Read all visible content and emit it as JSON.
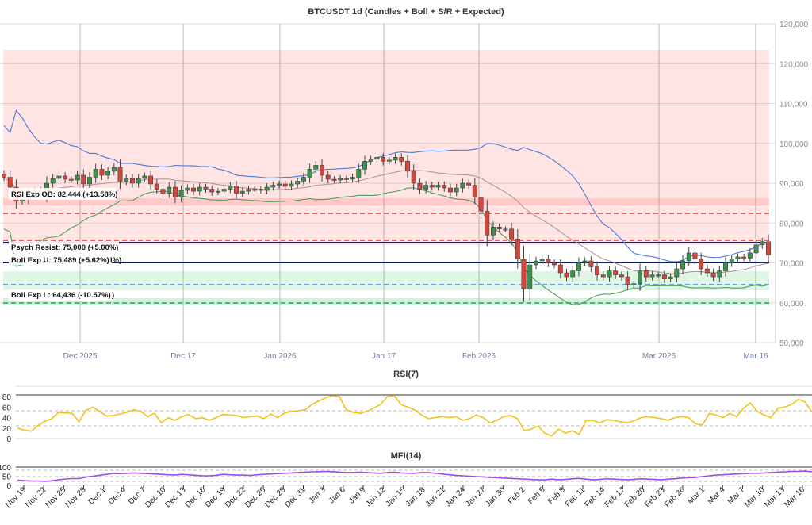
{
  "main": {
    "title": "BTCUSDT 1d (Candles + Boll + S/R + Expected)",
    "ylim": [
      50000,
      130000
    ],
    "yticks": [
      "50,000",
      "60,000",
      "70,000",
      "80,000",
      "90,000",
      "100,000",
      "110,000",
      "120,000",
      "130,000"
    ],
    "xticks": [
      "Dec 2025",
      "Dec 17",
      "Jan 2026",
      "Jan 17",
      "Feb 2026",
      "Mar 2026",
      "Mar 16"
    ],
    "annotations": {
      "rsi_ob": "RSI Exp OB: 82,444 (+13.58%)",
      "psych": "Psych Resist: 75,000 (+5.00%)",
      "boll_u": "Boll Exp U: 75,489 (+5.62%)",
      "boll_u_suffix": "I%)",
      "boll_l": "Boll Exp L: 64,436 (-10.57%)",
      "boll_l_suffix": ")"
    }
  },
  "rsi": {
    "title": "RSI(7)",
    "yticks": [
      "0",
      "20",
      "40",
      "60",
      "80"
    ]
  },
  "mfi": {
    "title": "MFI(14)",
    "yticks": [
      "0",
      "50",
      "100"
    ]
  },
  "date_labels": [
    "Nov 19",
    "Nov 22",
    "Nov 25",
    "Nov 28",
    "Dec 1",
    "Dec 4",
    "Dec 7",
    "Dec 10",
    "Dec 13",
    "Dec 16",
    "Dec 19",
    "Dec 22",
    "Dec 25",
    "Dec 28",
    "Dec 31",
    "Jan 3",
    "Jan 6",
    "Jan 9",
    "Jan 12",
    "Jan 15",
    "Jan 18",
    "Jan 21",
    "Jan 24",
    "Jan 27",
    "Jan 30",
    "Feb 2",
    "Feb 5",
    "Feb 8",
    "Feb 11",
    "Feb 14",
    "Feb 17",
    "Feb 20",
    "Feb 23",
    "Feb 26",
    "Mar 1",
    "Mar 4",
    "Mar 7",
    "Mar 10",
    "Mar 13",
    "Mar 16"
  ],
  "chart_data": [
    {
      "type": "candlestick",
      "title": "BTCUSDT 1d (Candles + Boll + S/R + Expected)",
      "ylim": [
        50000,
        130000
      ],
      "closes": [
        91500,
        89000,
        85500,
        86000,
        87500,
        88000,
        87000,
        90000,
        91200,
        91800,
        91000,
        90800,
        92000,
        89800,
        91500,
        93500,
        92000,
        93000,
        94000,
        90500,
        91200,
        90000,
        91200,
        91800,
        89800,
        88500,
        87500,
        89000,
        86500,
        88200,
        88800,
        88000,
        89000,
        88500,
        87800,
        88000,
        88500,
        89300,
        87500,
        88000,
        88500,
        88500,
        88200,
        89000,
        89500,
        89800,
        89200,
        89800,
        90500,
        91500,
        93500,
        94500,
        92000,
        91000,
        90800,
        91200,
        91000,
        91500,
        93500,
        95500,
        96000,
        96500,
        95500,
        95800,
        96500,
        95500,
        93000,
        90000,
        88500,
        89500,
        89000,
        89500,
        88800,
        87800,
        88800,
        90000,
        89500,
        86500,
        83000,
        77000,
        79000,
        78500,
        78500,
        76000,
        71000,
        63500,
        69500,
        70500,
        71000,
        70000,
        69500,
        67500,
        66500,
        68000,
        70000,
        70500,
        69000,
        67000,
        66500,
        68000,
        67000,
        66500,
        64500,
        64800,
        68000,
        66500,
        67000,
        67000,
        66000,
        66500,
        68500,
        70500,
        72500,
        71000,
        68500,
        67500,
        66500,
        68000,
        70000,
        71000,
        71500,
        71200,
        72500,
        74500,
        75300,
        72000
      ],
      "bollinger_upper": "approx 113000 in late Nov falling to 86000 by early Jan, rising to 98000 near Feb 1, then falling to 70000 mid-Feb and 72000 by Mar 16",
      "levels": {
        "rsi_exp_ob": 82444,
        "psych_resist": 75000,
        "boll_exp_u": 75489,
        "boll_exp_l": 64436,
        "support_low": 59900
      }
    },
    {
      "type": "line",
      "title": "RSI(7)",
      "ylim": [
        0,
        100
      ],
      "yticks": [
        0,
        20,
        40,
        60,
        80
      ],
      "values": [
        20,
        16,
        14,
        25,
        33,
        38,
        50,
        49,
        48,
        32,
        54,
        60,
        52,
        43,
        44,
        47,
        50,
        55,
        52,
        42,
        48,
        30,
        40,
        35,
        42,
        46,
        38,
        40,
        35,
        40,
        46,
        45,
        44,
        40,
        42,
        43,
        38,
        47,
        40,
        49,
        52,
        53,
        55,
        65,
        72,
        78,
        82,
        80,
        55,
        50,
        48,
        52,
        58,
        65,
        80,
        82,
        65,
        60,
        55,
        45,
        38,
        40,
        42,
        40,
        42,
        35,
        38,
        45,
        40,
        30,
        35,
        42,
        44,
        38,
        15,
        18,
        24,
        10,
        5,
        18,
        10,
        15,
        8,
        34,
        35,
        30,
        36,
        35,
        32,
        30,
        34,
        40,
        42,
        40,
        38,
        35,
        40,
        42,
        40,
        28,
        26,
        48,
        45,
        40,
        48,
        42,
        58,
        68,
        52,
        45,
        40,
        58,
        60,
        65,
        75,
        70,
        50
      ]
    },
    {
      "type": "line",
      "title": "MFI(14)",
      "ylim": [
        0,
        100
      ],
      "yticks": [
        0,
        50,
        100
      ],
      "values": [
        28,
        26,
        24,
        24,
        22,
        25,
        30,
        35,
        37,
        37,
        45,
        50,
        55,
        60,
        65,
        64,
        66,
        68,
        66,
        64,
        62,
        60,
        58,
        56,
        60,
        58,
        55,
        52,
        52,
        55,
        60,
        58,
        56,
        56,
        54,
        58,
        60,
        62,
        64,
        66,
        68,
        70,
        72,
        74,
        75,
        76,
        75,
        72,
        70,
        70,
        72,
        70,
        68,
        66,
        70,
        72,
        68,
        66,
        66,
        70,
        70,
        66,
        62,
        58,
        55,
        52,
        50,
        48,
        46,
        44,
        42,
        40,
        38,
        36,
        34,
        32,
        30,
        30,
        34,
        30,
        32,
        36,
        38,
        34,
        30,
        32,
        36,
        34,
        32,
        30,
        32,
        36,
        34,
        32,
        30,
        34,
        36,
        40,
        42,
        44,
        48,
        52,
        56,
        58,
        60,
        62,
        64,
        66,
        66,
        68,
        70,
        72,
        74,
        76,
        76,
        78,
        74
      ]
    }
  ]
}
